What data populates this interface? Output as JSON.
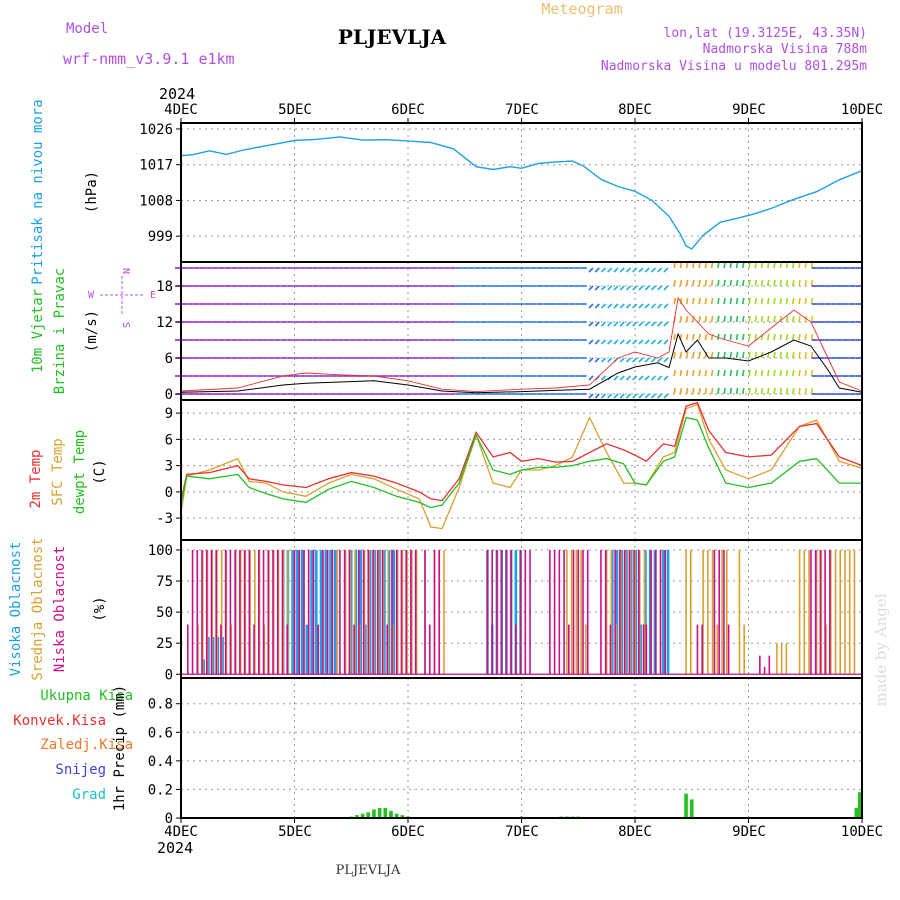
{
  "header": {
    "title": "PLJEVLJA",
    "model_label": "Model",
    "model_name": "wrf-nmm_v3.9.1 e1km",
    "meteogram": "Meteogram",
    "lonlat": "lon,lat (19.3125E, 43.35N)",
    "elevation": "Nadmorska Visina 788m",
    "model_elevation": "Nadmorska Visina u modelu 801.295m",
    "year": "2024",
    "footer": "PLJEVLJA",
    "credit": "made by Angel"
  },
  "colors": {
    "pressure": "#1ea0e8",
    "wind": "#22c022",
    "temp2m": "#e83030",
    "sfc": "#d8a030",
    "dewpt": "#22c022",
    "high_cloud": "#1ea0e8",
    "mid_cloud": "#d8a030",
    "low_cloud": "#c8108a",
    "total_precip": "#22c022",
    "conv_precip": "#e83030",
    "frozen_precip": "#f07828",
    "snow": "#4040e0",
    "hail": "#20c0c0",
    "purple": "#b050e0"
  },
  "chart_data": [
    {
      "type": "line",
      "panel": "pressure",
      "labels": [
        "Pritisak na nivou mora",
        "(hPa)"
      ],
      "x_ticks": [
        "4DEC",
        "5DEC",
        "6DEC",
        "7DEC",
        "8DEC",
        "9DEC",
        "10DEC"
      ],
      "y_ticks": [
        999,
        1008,
        1017,
        1026
      ],
      "ylim": [
        992.5,
        1027.5
      ],
      "x": [
        0,
        0.1,
        0.25,
        0.4,
        0.55,
        0.7,
        0.85,
        1.0,
        1.2,
        1.4,
        1.6,
        1.8,
        2.0,
        2.2,
        2.4,
        2.6,
        2.75,
        2.9,
        3.0,
        3.15,
        3.3,
        3.45,
        3.55,
        3.7,
        3.85,
        4.0,
        4.15,
        4.3,
        4.4,
        4.45,
        4.5,
        4.6,
        4.75,
        4.9,
        5.05,
        5.2,
        5.4,
        5.6,
        5.8,
        6.0
      ],
      "series": [
        {
          "values": [
            1019.3,
            1019.5,
            1020.5,
            1019.6,
            1020.7,
            1021.5,
            1022.3,
            1023.1,
            1023.4,
            1024,
            1023.2,
            1023.3,
            1023,
            1022.6,
            1021,
            1016.5,
            1015.8,
            1016.5,
            1016.1,
            1017.3,
            1017.7,
            1017.9,
            1016.6,
            1013.3,
            1011.5,
            1010.3,
            1008,
            1004,
            999.5,
            996.5,
            995.8,
            999.2,
            1002.5,
            1003.5,
            1004.6,
            1006,
            1008.3,
            1010.2,
            1013.2,
            1015.5
          ]
        }
      ]
    },
    {
      "type": "line",
      "panel": "wind",
      "labels": [
        "10m Vjetar",
        "Brzina i Pravac",
        "(m/s)"
      ],
      "compass": {
        "n": "N",
        "s": "S",
        "e": "E",
        "w": "W"
      },
      "y_ticks": [
        0,
        6,
        12,
        18
      ],
      "ylim": [
        -1,
        22
      ],
      "x": [
        0,
        0.5,
        0.9,
        1.1,
        1.4,
        1.7,
        2.0,
        2.3,
        2.6,
        3.0,
        3.3,
        3.6,
        3.85,
        4.0,
        4.2,
        4.3,
        4.38,
        4.45,
        4.55,
        4.65,
        4.8,
        5.0,
        5.2,
        5.4,
        5.55,
        5.7,
        5.8,
        6.0
      ],
      "series": [
        {
          "name": "speed",
          "values": [
            0.3,
            0.5,
            1.5,
            1.8,
            2,
            2.2,
            1.5,
            0.5,
            0.2,
            0.4,
            0.6,
            0.8,
            3.5,
            4.5,
            5.2,
            4.4,
            10,
            7,
            9,
            6,
            6,
            5.5,
            7,
            9,
            8,
            4,
            1,
            0.3
          ]
        },
        {
          "name": "gust",
          "values": [
            0.5,
            1,
            3,
            3.5,
            3.2,
            3,
            2.2,
            0.8,
            0.4,
            0.8,
            1,
            1.5,
            6,
            7,
            6,
            7,
            16,
            14,
            12,
            10,
            9,
            8,
            11,
            14,
            12,
            6,
            2,
            0.5
          ]
        }
      ]
    },
    {
      "type": "line",
      "panel": "temperature",
      "labels": [
        "2m Temp",
        "SFC Temp",
        "dewpt Temp",
        "(C)"
      ],
      "y_ticks": [
        -3,
        0,
        3,
        6,
        9
      ],
      "ylim": [
        -5.5,
        10.5
      ],
      "x": [
        0,
        0.05,
        0.25,
        0.5,
        0.6,
        0.75,
        0.9,
        1.1,
        1.3,
        1.5,
        1.7,
        1.9,
        2.1,
        2.2,
        2.3,
        2.45,
        2.6,
        2.75,
        2.9,
        3.0,
        3.15,
        3.3,
        3.45,
        3.6,
        3.75,
        3.9,
        4.0,
        4.1,
        4.25,
        4.35,
        4.45,
        4.55,
        4.65,
        4.8,
        5.0,
        5.2,
        5.45,
        5.6,
        5.8,
        6.0
      ],
      "series": [
        {
          "name": "temp2m",
          "values": [
            -1,
            2,
            2.2,
            3,
            1.5,
            1.2,
            0.8,
            0.5,
            1.5,
            2.2,
            1.8,
            1,
            0,
            -0.8,
            -1,
            1.5,
            6.8,
            4,
            4.5,
            3.5,
            3.8,
            3.4,
            3.5,
            4.5,
            5.5,
            4.8,
            4.2,
            3.5,
            5.5,
            5.2,
            9.8,
            10.2,
            7,
            4.5,
            4,
            4.2,
            7.5,
            7.8,
            4,
            3
          ]
        },
        {
          "name": "sfc",
          "values": [
            -2.5,
            1.8,
            2.5,
            3.8,
            1.2,
            1,
            0,
            -0.5,
            1,
            2,
            1.5,
            0.3,
            -0.8,
            -4,
            -4.2,
            0.5,
            6.5,
            1,
            0.5,
            2.5,
            2.5,
            3,
            4,
            8.5,
            4.5,
            1,
            1,
            0.8,
            4,
            4.5,
            9.5,
            10,
            6,
            2.5,
            1.5,
            2.5,
            7.5,
            8.2,
            3.5,
            2.7
          ]
        },
        {
          "name": "dewpt",
          "values": [
            -1.5,
            1.8,
            1.5,
            2,
            0.5,
            -0.2,
            -0.8,
            -1.2,
            0.3,
            1.2,
            0.5,
            -0.5,
            -1.2,
            -1.8,
            -1.5,
            1,
            6.5,
            2.5,
            2,
            2.5,
            2.8,
            2.8,
            3,
            3.5,
            3.8,
            3.2,
            1,
            0.8,
            3.5,
            4,
            8.5,
            8.2,
            5,
            1,
            0.5,
            1,
            3.5,
            3.8,
            1,
            1
          ]
        }
      ]
    },
    {
      "type": "bar",
      "panel": "cloud",
      "labels": [
        "Visoka Oblacnost",
        "Srednja Oblacnost",
        "Niska Oblacnost",
        "(%)"
      ],
      "y_ticks": [
        0,
        25,
        50,
        75,
        100
      ],
      "ylim": [
        -3,
        108
      ],
      "series": [
        {
          "name": "low",
          "segments": [
            [
              0.06,
              0.95,
              100
            ],
            [
              1.0,
              1.35,
              100
            ],
            [
              1.4,
              2.1,
              100
            ],
            [
              2.15,
              2.3,
              100
            ],
            [
              2.7,
              3.1,
              100
            ],
            [
              3.25,
              3.6,
              100
            ],
            [
              3.7,
              4.1,
              100
            ],
            [
              4.1,
              4.3,
              100
            ],
            [
              4.55,
              4.6,
              40
            ],
            [
              4.7,
              4.85,
              100
            ],
            [
              5.1,
              5.2,
              15
            ],
            [
              5.55,
              5.75,
              100
            ]
          ]
        },
        {
          "name": "mid",
          "segments": [
            [
              0.15,
              0.95,
              100
            ],
            [
              1.0,
              1.4,
              100
            ],
            [
              1.45,
              2.1,
              100
            ],
            [
              2.15,
              2.35,
              100
            ],
            [
              2.7,
              3.0,
              100
            ],
            [
              3.4,
              3.6,
              100
            ],
            [
              3.75,
              4.1,
              100
            ],
            [
              4.1,
              4.3,
              100
            ],
            [
              4.45,
              4.5,
              100
            ],
            [
              4.6,
              4.85,
              100
            ],
            [
              4.92,
              5.0,
              100
            ],
            [
              5.25,
              5.35,
              25
            ],
            [
              5.45,
              5.55,
              100
            ],
            [
              5.6,
              5.95,
              100
            ]
          ]
        },
        {
          "name": "high",
          "segments": [
            [
              0.2,
              0.4,
              30
            ],
            [
              0.9,
              1.4,
              100
            ],
            [
              1.5,
              1.9,
              100
            ],
            [
              2.7,
              3.0,
              100
            ],
            [
              3.8,
              4.2,
              100
            ],
            [
              4.25,
              4.3,
              100
            ]
          ]
        }
      ]
    },
    {
      "type": "bar",
      "panel": "precip",
      "labels": [
        "Ukupna Kisa",
        "Konvek.Kisa",
        "Zaledj.Kisa",
        "Snijeg",
        "Grad",
        "1hr Precip (mm)"
      ],
      "y_ticks": [
        0,
        0.2,
        0.4,
        0.6,
        0.8
      ],
      "ylim": [
        0,
        0.98
      ],
      "x": [
        1.5,
        1.55,
        1.6,
        1.65,
        1.7,
        1.75,
        1.8,
        1.85,
        1.9,
        1.95,
        2.0,
        3.0,
        3.35,
        3.4,
        3.45,
        3.5,
        4.45,
        4.5,
        5.95,
        5.98
      ],
      "values": [
        0.01,
        0.02,
        0.03,
        0.04,
        0.06,
        0.07,
        0.07,
        0.05,
        0.03,
        0.02,
        0.01,
        0.01,
        0.01,
        0.01,
        0.01,
        0.01,
        0.17,
        0.13,
        0.07,
        0.18
      ]
    }
  ]
}
